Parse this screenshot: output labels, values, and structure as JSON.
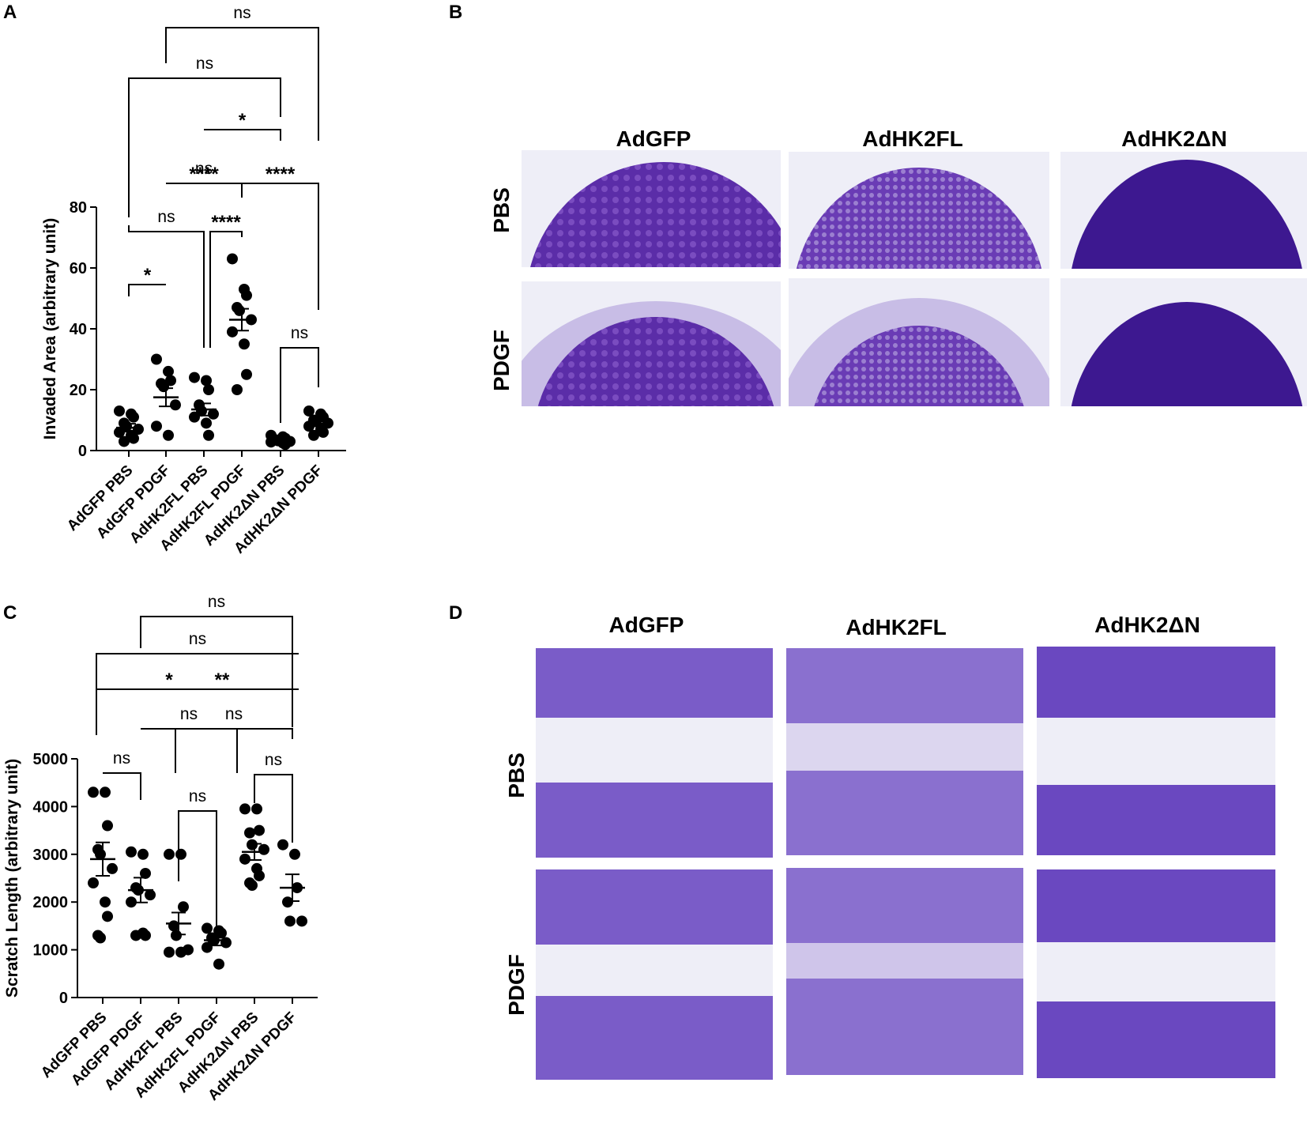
{
  "panels": {
    "A": "A",
    "B": "B",
    "C": "C",
    "D": "D"
  },
  "chart_data": [
    {
      "type": "scatter",
      "panel": "A",
      "categories": [
        "AdGFP PBS",
        "AdGFP PDGF",
        "AdHK2FL PBS",
        "AdHK2FL PDGF",
        "AdHK2ΔN PBS",
        "AdHK2ΔN PDGF"
      ],
      "ylabel": "Invaded Area (arbitrary unit)",
      "ylim": [
        0,
        80
      ],
      "yticks": [
        0,
        20,
        40,
        60,
        80
      ],
      "means": [
        7.5,
        17.5,
        13.5,
        43,
        3.2,
        8.8
      ],
      "sems": [
        1.3,
        3.0,
        2.0,
        3.6,
        0.4,
        0.8
      ],
      "points": [
        [
          13,
          12,
          11,
          9,
          8,
          7,
          6,
          5,
          4,
          3
        ],
        [
          30,
          26,
          23,
          22,
          21,
          15,
          8,
          5
        ],
        [
          24,
          23,
          20,
          15,
          13,
          12,
          11,
          9,
          5
        ],
        [
          63,
          53,
          51,
          47,
          46,
          43,
          39,
          35,
          25,
          20
        ],
        [
          5,
          4.5,
          4,
          3.5,
          3.2,
          3,
          2.8,
          2.5,
          2
        ],
        [
          13,
          12,
          11,
          10,
          9.5,
          9,
          8,
          7,
          6,
          5
        ]
      ],
      "comparisons": [
        {
          "a": 0,
          "b": 1,
          "label": "*"
        },
        {
          "a": 0,
          "b": 2,
          "label": "ns"
        },
        {
          "a": 2,
          "b": 3,
          "label": "****"
        },
        {
          "a": 1,
          "b": 3,
          "label": "ns"
        },
        {
          "a": 4,
          "b": 5,
          "label": "ns"
        },
        {
          "a": 1,
          "b": 3,
          "label": "****"
        },
        {
          "a": 3,
          "b": 5,
          "label": "****"
        },
        {
          "a": 2,
          "b": 4,
          "label": "*"
        },
        {
          "a": 0,
          "b": 4,
          "label": "ns"
        },
        {
          "a": 1,
          "b": 5,
          "label": "ns"
        }
      ]
    },
    {
      "type": "scatter",
      "panel": "C",
      "categories": [
        "AdGFP PBS",
        "AdGFP PDGF",
        "AdHK2FL PBS",
        "AdHK2FL PDGF",
        "AdHK2ΔN PBS",
        "AdHK2ΔN PDGF"
      ],
      "ylabel": "Scratch Length (arbitrary unit)",
      "ylim": [
        0,
        5000
      ],
      "yticks": [
        0,
        1000,
        2000,
        3000,
        4000,
        5000
      ],
      "means": [
        2900,
        2250,
        1550,
        1200,
        3050,
        2300
      ],
      "sems": [
        350,
        260,
        230,
        110,
        170,
        280
      ],
      "points": [
        [
          4300,
          4300,
          3600,
          3100,
          3000,
          2700,
          2400,
          2000,
          1700,
          1300,
          1250
        ],
        [
          3050,
          3000,
          2600,
          2300,
          2250,
          2150,
          2000,
          1350,
          1300,
          1300
        ],
        [
          3000,
          3000,
          1900,
          1500,
          1300,
          1000,
          950,
          950
        ],
        [
          1450,
          1400,
          1350,
          1250,
          1200,
          1150,
          1050,
          700
        ],
        [
          3950,
          3950,
          3500,
          3450,
          3200,
          3100,
          2900,
          2700,
          2550,
          2400,
          2350
        ],
        [
          3200,
          3000,
          2300,
          2000,
          1600,
          1600
        ]
      ],
      "comparisons": [
        {
          "a": 0,
          "b": 1,
          "label": "ns"
        },
        {
          "a": 2,
          "b": 3,
          "label": "ns"
        },
        {
          "a": 4,
          "b": 5,
          "label": "ns"
        },
        {
          "a": 1,
          "b": 3,
          "label": "ns"
        },
        {
          "a": 3,
          "b": 5,
          "label": "ns"
        },
        {
          "a": 0,
          "b": 2,
          "label": "*"
        },
        {
          "a": 2,
          "b": 4,
          "label": "**"
        },
        {
          "a": 0,
          "b": 4,
          "label": "ns"
        },
        {
          "a": 1,
          "b": 5,
          "label": "ns"
        }
      ]
    }
  ],
  "panel_B": {
    "columns": [
      "AdGFP",
      "AdHK2FL",
      "AdHK2ΔN"
    ],
    "rows": [
      "PBS",
      "PDGF"
    ]
  },
  "panel_D": {
    "columns": [
      "AdGFP",
      "AdHK2FL",
      "AdHK2ΔN"
    ],
    "rows": [
      "PBS",
      "PDGF"
    ]
  },
  "colors": {
    "stain": "#5b2da8",
    "stain_dark": "#3d1890",
    "background": "#eeeef7"
  }
}
